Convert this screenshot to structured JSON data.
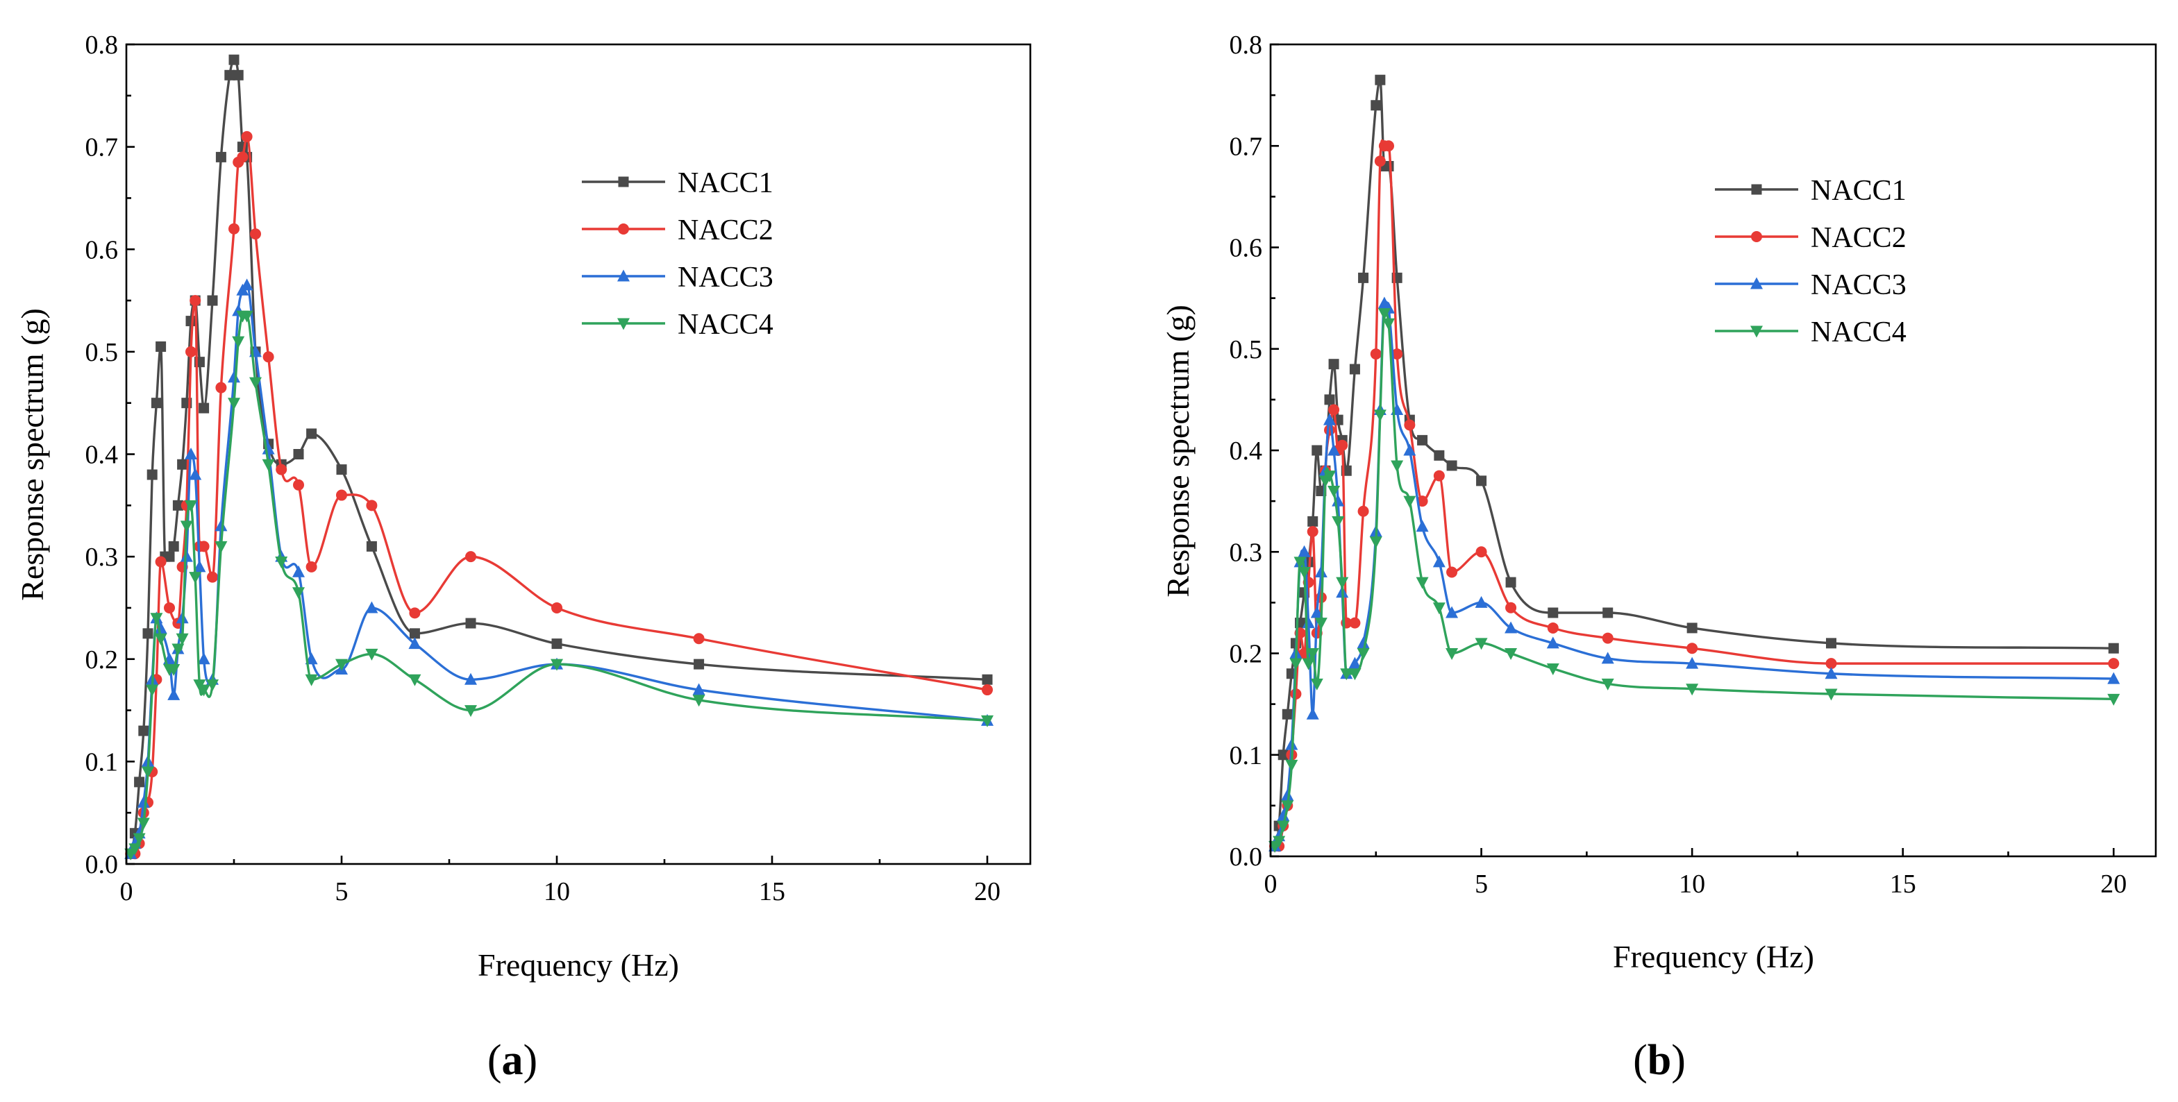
{
  "colors": {
    "NACC1": "#4a4a4a",
    "NACC2": "#e83a35",
    "NACC3": "#2b6fd6",
    "NACC4": "#2fa35b"
  },
  "chart_data": [
    {
      "type": "line",
      "panel_label": "a",
      "xlabel": "Frequency (Hz)",
      "ylabel": "Response spectrum (g)",
      "xlim": [
        0,
        21
      ],
      "ylim": [
        0,
        0.8
      ],
      "xticks": [
        "0",
        "5",
        "10",
        "15",
        "20"
      ],
      "yticks": [
        "0.0",
        "0.1",
        "0.2",
        "0.3",
        "0.4",
        "0.5",
        "0.6",
        "0.7",
        "0.8"
      ],
      "legend": "upper-right",
      "series": [
        {
          "name": "NACC1",
          "marker": "square",
          "x": [
            0.1,
            0.2,
            0.3,
            0.4,
            0.5,
            0.6,
            0.7,
            0.8,
            0.9,
            1.0,
            1.1,
            1.2,
            1.3,
            1.4,
            1.5,
            1.6,
            1.7,
            1.8,
            2.0,
            2.2,
            2.4,
            2.5,
            2.6,
            2.7,
            2.8,
            3.0,
            3.3,
            3.6,
            4.0,
            4.3,
            5.0,
            5.7,
            6.7,
            8.0,
            10.0,
            13.3,
            20.0
          ],
          "y": [
            0.01,
            0.03,
            0.08,
            0.13,
            0.225,
            0.38,
            0.45,
            0.505,
            0.3,
            0.3,
            0.31,
            0.35,
            0.39,
            0.45,
            0.53,
            0.55,
            0.49,
            0.445,
            0.55,
            0.69,
            0.77,
            0.785,
            0.77,
            0.7,
            0.69,
            0.5,
            0.41,
            0.39,
            0.4,
            0.42,
            0.385,
            0.31,
            0.225,
            0.235,
            0.215,
            0.195,
            0.18
          ]
        },
        {
          "name": "NACC2",
          "marker": "circle",
          "x": [
            0.1,
            0.2,
            0.3,
            0.4,
            0.5,
            0.6,
            0.7,
            0.8,
            1.0,
            1.2,
            1.3,
            1.4,
            1.5,
            1.6,
            1.7,
            1.8,
            2.0,
            2.2,
            2.5,
            2.6,
            2.7,
            2.8,
            3.0,
            3.3,
            3.6,
            4.0,
            4.3,
            5.0,
            5.7,
            6.7,
            8.0,
            10.0,
            13.3,
            20.0
          ],
          "y": [
            0.01,
            0.01,
            0.02,
            0.05,
            0.06,
            0.09,
            0.18,
            0.295,
            0.25,
            0.235,
            0.29,
            0.35,
            0.5,
            0.55,
            0.31,
            0.31,
            0.28,
            0.465,
            0.62,
            0.685,
            0.69,
            0.71,
            0.615,
            0.495,
            0.385,
            0.37,
            0.29,
            0.36,
            0.35,
            0.245,
            0.3,
            0.25,
            0.22,
            0.17
          ]
        },
        {
          "name": "NACC3",
          "marker": "triangle-up",
          "x": [
            0.1,
            0.2,
            0.3,
            0.4,
            0.5,
            0.6,
            0.7,
            0.8,
            1.0,
            1.1,
            1.2,
            1.3,
            1.4,
            1.5,
            1.6,
            1.7,
            1.8,
            2.0,
            2.2,
            2.5,
            2.6,
            2.7,
            2.8,
            3.0,
            3.3,
            3.6,
            4.0,
            4.3,
            5.0,
            5.7,
            6.7,
            8.0,
            10.0,
            13.3,
            20.0
          ],
          "y": [
            0.01,
            0.02,
            0.03,
            0.06,
            0.1,
            0.18,
            0.24,
            0.23,
            0.2,
            0.165,
            0.21,
            0.24,
            0.3,
            0.4,
            0.38,
            0.29,
            0.2,
            0.18,
            0.33,
            0.475,
            0.54,
            0.56,
            0.565,
            0.5,
            0.405,
            0.3,
            0.285,
            0.2,
            0.19,
            0.25,
            0.215,
            0.18,
            0.195,
            0.17,
            0.14
          ]
        },
        {
          "name": "NACC4",
          "marker": "triangle-down",
          "x": [
            0.1,
            0.2,
            0.3,
            0.4,
            0.5,
            0.6,
            0.7,
            0.8,
            1.0,
            1.1,
            1.2,
            1.3,
            1.4,
            1.5,
            1.6,
            1.7,
            1.8,
            2.0,
            2.2,
            2.5,
            2.6,
            2.7,
            2.8,
            3.0,
            3.3,
            3.6,
            4.0,
            4.3,
            5.0,
            5.7,
            6.7,
            8.0,
            10.0,
            13.3,
            20.0
          ],
          "y": [
            0.01,
            0.015,
            0.025,
            0.04,
            0.09,
            0.17,
            0.24,
            0.22,
            0.19,
            0.19,
            0.21,
            0.22,
            0.33,
            0.35,
            0.28,
            0.175,
            0.17,
            0.175,
            0.31,
            0.45,
            0.51,
            0.535,
            0.535,
            0.47,
            0.39,
            0.295,
            0.265,
            0.18,
            0.195,
            0.205,
            0.18,
            0.15,
            0.195,
            0.16,
            0.14
          ]
        }
      ]
    },
    {
      "type": "line",
      "panel_label": "b",
      "xlabel": "Frequency (Hz)",
      "ylabel": "Response spectrum (g)",
      "xlim": [
        0,
        21
      ],
      "ylim": [
        0,
        0.8
      ],
      "xticks": [
        "0",
        "5",
        "10",
        "15",
        "20"
      ],
      "yticks": [
        "0.0",
        "0.1",
        "0.2",
        "0.3",
        "0.4",
        "0.5",
        "0.6",
        "0.7",
        "0.8"
      ],
      "legend": "upper-right",
      "series": [
        {
          "name": "NACC1",
          "marker": "square",
          "x": [
            0.1,
            0.2,
            0.3,
            0.4,
            0.5,
            0.6,
            0.7,
            0.8,
            0.9,
            1.0,
            1.1,
            1.2,
            1.3,
            1.4,
            1.5,
            1.6,
            1.7,
            1.8,
            2.0,
            2.2,
            2.5,
            2.6,
            2.7,
            2.8,
            3.0,
            3.3,
            3.6,
            4.0,
            4.3,
            5.0,
            5.7,
            6.7,
            8.0,
            10.0,
            13.3,
            20.0
          ],
          "y": [
            0.01,
            0.03,
            0.1,
            0.14,
            0.18,
            0.21,
            0.23,
            0.26,
            0.29,
            0.33,
            0.4,
            0.36,
            0.38,
            0.45,
            0.485,
            0.43,
            0.41,
            0.38,
            0.48,
            0.57,
            0.74,
            0.765,
            0.68,
            0.68,
            0.57,
            0.43,
            0.41,
            0.395,
            0.385,
            0.37,
            0.27,
            0.24,
            0.24,
            0.225,
            0.21,
            0.205
          ]
        },
        {
          "name": "NACC2",
          "marker": "circle",
          "x": [
            0.1,
            0.2,
            0.3,
            0.4,
            0.5,
            0.6,
            0.7,
            0.8,
            0.9,
            1.0,
            1.1,
            1.2,
            1.3,
            1.4,
            1.5,
            1.6,
            1.7,
            1.8,
            2.0,
            2.2,
            2.5,
            2.6,
            2.7,
            2.8,
            3.0,
            3.3,
            3.6,
            4.0,
            4.3,
            5.0,
            5.7,
            6.7,
            8.0,
            10.0,
            13.3,
            20.0
          ],
          "y": [
            0.01,
            0.01,
            0.03,
            0.05,
            0.1,
            0.16,
            0.22,
            0.2,
            0.27,
            0.32,
            0.22,
            0.255,
            0.38,
            0.42,
            0.44,
            0.4,
            0.405,
            0.23,
            0.23,
            0.34,
            0.495,
            0.685,
            0.7,
            0.7,
            0.495,
            0.425,
            0.35,
            0.375,
            0.28,
            0.3,
            0.245,
            0.225,
            0.215,
            0.205,
            0.19,
            0.19
          ]
        },
        {
          "name": "NACC3",
          "marker": "triangle-up",
          "x": [
            0.1,
            0.2,
            0.3,
            0.4,
            0.5,
            0.6,
            0.7,
            0.8,
            0.9,
            1.0,
            1.1,
            1.2,
            1.3,
            1.4,
            1.5,
            1.6,
            1.7,
            1.8,
            2.0,
            2.2,
            2.5,
            2.6,
            2.7,
            2.8,
            3.0,
            3.3,
            3.6,
            4.0,
            4.3,
            5.0,
            5.7,
            6.7,
            8.0,
            10.0,
            13.3,
            20.0
          ],
          "y": [
            0.01,
            0.02,
            0.04,
            0.06,
            0.11,
            0.2,
            0.29,
            0.3,
            0.23,
            0.14,
            0.24,
            0.28,
            0.38,
            0.43,
            0.4,
            0.35,
            0.26,
            0.18,
            0.19,
            0.21,
            0.32,
            0.44,
            0.545,
            0.54,
            0.44,
            0.4,
            0.325,
            0.29,
            0.24,
            0.25,
            0.225,
            0.21,
            0.195,
            0.19,
            0.18,
            0.175
          ]
        },
        {
          "name": "NACC4",
          "marker": "triangle-down",
          "x": [
            0.1,
            0.2,
            0.3,
            0.4,
            0.5,
            0.6,
            0.7,
            0.8,
            0.9,
            1.0,
            1.1,
            1.2,
            1.3,
            1.4,
            1.5,
            1.6,
            1.7,
            1.8,
            2.0,
            2.2,
            2.5,
            2.6,
            2.7,
            2.8,
            3.0,
            3.3,
            3.6,
            4.0,
            4.3,
            5.0,
            5.7,
            6.7,
            8.0,
            10.0,
            13.3,
            20.0
          ],
          "y": [
            0.01,
            0.015,
            0.03,
            0.05,
            0.09,
            0.19,
            0.29,
            0.28,
            0.19,
            0.2,
            0.17,
            0.23,
            0.37,
            0.375,
            0.36,
            0.33,
            0.27,
            0.18,
            0.18,
            0.2,
            0.31,
            0.435,
            0.535,
            0.525,
            0.385,
            0.35,
            0.27,
            0.245,
            0.2,
            0.21,
            0.2,
            0.185,
            0.17,
            0.165,
            0.16,
            0.155
          ]
        }
      ]
    }
  ]
}
